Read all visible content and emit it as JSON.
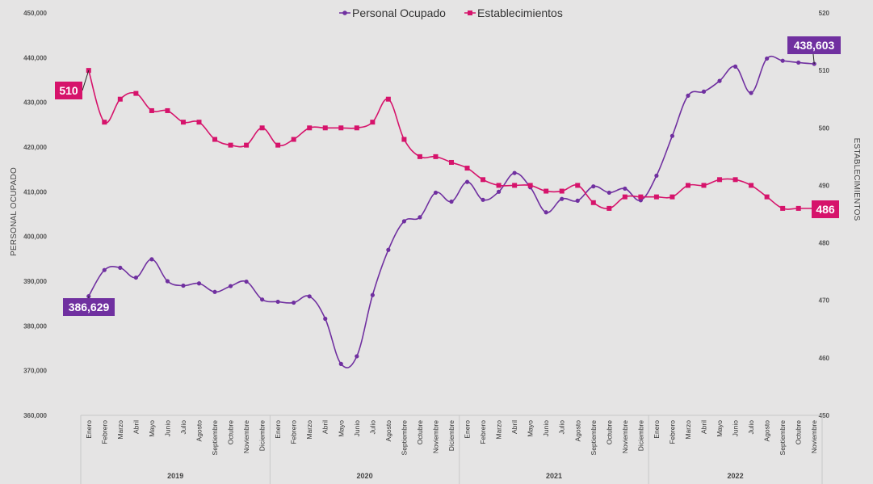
{
  "chart_data": {
    "type": "line",
    "colors": {
      "personal": "#7030a0",
      "establecimientos": "#d6136b"
    },
    "categories": [
      "Enero",
      "Febrero",
      "Marzo",
      "Abril",
      "Mayo",
      "Junio",
      "Julio",
      "Agosto",
      "Septiembre",
      "Octubre",
      "Noviembre",
      "Diciembre",
      "Enero",
      "Febrero",
      "Marzo",
      "Abril",
      "Mayo",
      "Junio",
      "Julio",
      "Agosto",
      "Septiembre",
      "Octubre",
      "Noviembre",
      "Diciembre",
      "Enero",
      "Febrero",
      "Marzo",
      "Abril",
      "Mayo",
      "Junio",
      "Julio",
      "Agosto",
      "Septiembre",
      "Octubre",
      "Noviembre",
      "Diciembre",
      "Enero",
      "Febrero",
      "Marzo",
      "Abril",
      "Mayo",
      "Junio",
      "Julio",
      "Agosto",
      "Septiembre",
      "Octubre",
      "Noviembre"
    ],
    "years": [
      {
        "label": "2019",
        "start": 0,
        "end": 11
      },
      {
        "label": "2020",
        "start": 12,
        "end": 23
      },
      {
        "label": "2021",
        "start": 24,
        "end": 35
      },
      {
        "label": "2022",
        "start": 36,
        "end": 46
      }
    ],
    "y_left": {
      "label": "PERSONAL OCUPADO",
      "min": 360000,
      "max": 450000,
      "ticks": [
        360000,
        370000,
        380000,
        390000,
        400000,
        410000,
        420000,
        430000,
        440000,
        450000
      ],
      "tick_labels": [
        "360,000",
        "370,000",
        "380,000",
        "390,000",
        "400,000",
        "410,000",
        "420,000",
        "430,000",
        "440,000",
        "450,000"
      ]
    },
    "y_right": {
      "label": "ESTABLECIMIENTOS",
      "min": 450,
      "max": 520,
      "ticks": [
        450,
        460,
        470,
        480,
        490,
        500,
        510,
        520
      ],
      "tick_labels": [
        "450",
        "460",
        "470",
        "480",
        "490",
        "500",
        "510",
        "520"
      ]
    },
    "series": [
      {
        "name": "Personal Ocupado",
        "axis": "left",
        "marker": "circle",
        "values": [
          386629,
          392500,
          393000,
          390800,
          394900,
          390000,
          389000,
          389500,
          387600,
          388900,
          389900,
          385900,
          385400,
          385200,
          386600,
          381600,
          371500,
          373200,
          386900,
          397000,
          403400,
          404300,
          409800,
          407800,
          412200,
          408200,
          410000,
          414200,
          411000,
          405400,
          408400,
          408000,
          411200,
          409800,
          410700,
          408100,
          413600,
          422500,
          431500,
          432400,
          434800,
          438000,
          432100,
          439800,
          439300,
          438900,
          438603
        ],
        "callouts": [
          {
            "index": 0,
            "label": "386,629"
          },
          {
            "index": 46,
            "label": "438,603"
          }
        ]
      },
      {
        "name": "Establecimientos",
        "axis": "right",
        "marker": "square",
        "values": [
          510,
          501,
          505,
          506,
          503,
          503,
          501,
          501,
          498,
          497,
          497,
          500,
          497,
          498,
          500,
          500,
          500,
          500,
          501,
          505,
          498,
          495,
          495,
          494,
          493,
          491,
          490,
          490,
          490,
          489,
          489,
          490,
          487,
          486,
          488,
          488,
          488,
          488,
          490,
          490,
          491,
          491,
          490,
          488,
          486,
          486,
          486
        ],
        "callouts": [
          {
            "index": 0,
            "label": "510"
          },
          {
            "index": 46,
            "label": "486"
          }
        ]
      }
    ],
    "legend_position": "top-center",
    "grid": false
  }
}
